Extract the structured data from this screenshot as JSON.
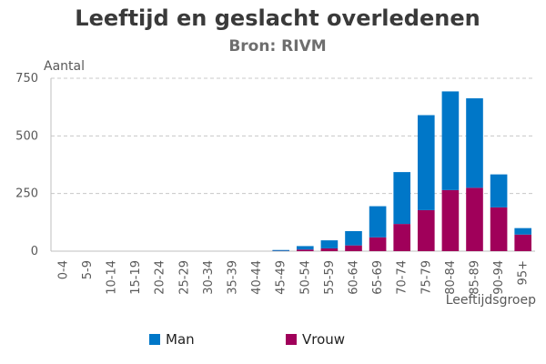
{
  "title": "Leeftijd en geslacht overledenen",
  "subtitle": "Bron: RIVM",
  "chart_data": {
    "type": "bar",
    "stacked": true,
    "categories": [
      "0-4",
      "5-9",
      "10-14",
      "15-19",
      "20-24",
      "25-29",
      "30-34",
      "35-39",
      "40-44",
      "45-49",
      "50-54",
      "55-59",
      "60-64",
      "65-69",
      "70-74",
      "75-79",
      "80-84",
      "85-89",
      "90-94",
      "95+"
    ],
    "series": [
      {
        "name": "Vrouw",
        "color": "#a0005a",
        "values": [
          0,
          0,
          0,
          0,
          0,
          0,
          0,
          0,
          0,
          1,
          7,
          12,
          25,
          60,
          118,
          178,
          265,
          275,
          190,
          72
        ]
      },
      {
        "name": "Man",
        "color": "#0077c8",
        "values": [
          0,
          0,
          0,
          0,
          0,
          0,
          0,
          0,
          0,
          4,
          15,
          35,
          62,
          135,
          225,
          412,
          428,
          388,
          143,
          28
        ]
      }
    ],
    "xlabel": "Leeftijdsgroep",
    "ylabel": "Aantal",
    "ylim": [
      0,
      750
    ],
    "yticks": [
      0,
      250,
      500,
      750
    ],
    "grid": true,
    "legend": "bottom"
  }
}
